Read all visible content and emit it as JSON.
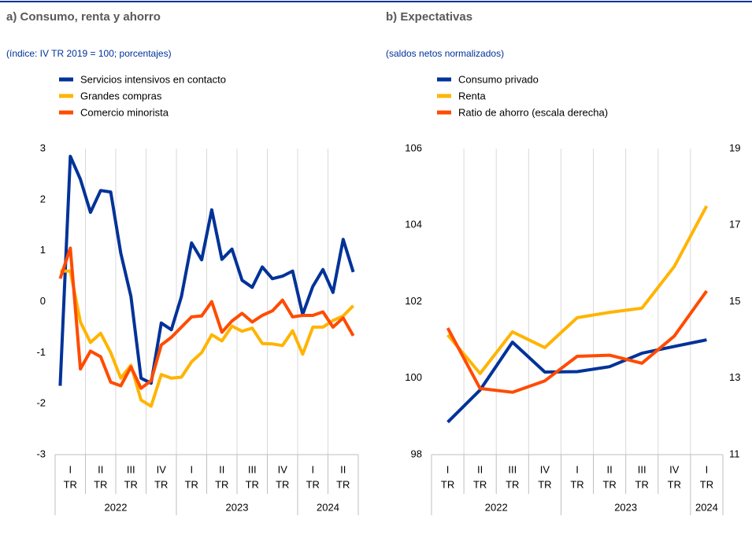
{
  "chart_data": [
    {
      "type": "line",
      "title": "a) Consumo, renta y ahorro",
      "subtitle": "(índice: IV TR 2019 = 100; porcentajes)",
      "categories": [
        null,
        "I",
        null,
        null,
        "II",
        null,
        null,
        "III",
        null,
        null,
        "IV",
        null,
        null,
        "I",
        null,
        null,
        "II",
        null,
        null,
        "III",
        null,
        null,
        "IV",
        null,
        null,
        "I",
        null,
        null,
        "II",
        null
      ],
      "quarter_suffix": "TR",
      "years": [
        "2022",
        "2023",
        "2024"
      ],
      "ylim": [
        -3,
        3
      ],
      "yticks": [
        -3,
        -2,
        -1,
        0,
        1,
        2,
        3
      ],
      "series": [
        {
          "name": "Servicios intensivos en contacto",
          "color": "#003299",
          "values": [
            -1.65,
            2.85,
            2.4,
            1.75,
            2.18,
            2.15,
            0.95,
            0.1,
            -1.5,
            -1.6,
            -0.42,
            -0.55,
            0.1,
            1.15,
            0.82,
            1.8,
            0.83,
            1.03,
            0.42,
            0.28,
            0.68,
            0.45,
            0.5,
            0.6,
            -0.25,
            0.3,
            0.63,
            0.18,
            1.22,
            0.58
          ]
        },
        {
          "name": "Grandes compras",
          "color": "#ffb400",
          "values": [
            0.6,
            0.6,
            -0.4,
            -0.8,
            -0.62,
            -1.0,
            -1.5,
            -1.25,
            -1.93,
            -2.05,
            -1.43,
            -1.5,
            -1.48,
            -1.18,
            -1.0,
            -0.65,
            -0.77,
            -0.48,
            -0.58,
            -0.52,
            -0.82,
            -0.83,
            -0.86,
            -0.57,
            -1.03,
            -0.5,
            -0.5,
            -0.37,
            -0.28,
            -0.08
          ]
        },
        {
          "name": "Comercio minorista",
          "color": "#ff4b00",
          "values": [
            0.45,
            1.05,
            -1.32,
            -0.97,
            -1.08,
            -1.58,
            -1.65,
            -1.28,
            -1.7,
            -1.55,
            -0.85,
            -0.7,
            -0.5,
            -0.3,
            -0.28,
            0.0,
            -0.6,
            -0.38,
            -0.23,
            -0.4,
            -0.27,
            -0.18,
            0.03,
            -0.3,
            -0.27,
            -0.27,
            -0.2,
            -0.5,
            -0.32,
            -0.67
          ]
        }
      ]
    },
    {
      "type": "line",
      "title": "b) Expectativas",
      "subtitle": "(saldos netos normalizados)",
      "categories": [
        "I",
        "II",
        "III",
        "IV",
        "I",
        "II",
        "III",
        "IV",
        "I"
      ],
      "quarter_suffix": "TR",
      "years": [
        "2022",
        "2023",
        "2024"
      ],
      "ylim": [
        98,
        106
      ],
      "yticks": [
        98,
        100,
        102,
        104,
        106
      ],
      "y2lim": [
        11,
        19
      ],
      "y2ticks": [
        11,
        13,
        15,
        17,
        19
      ],
      "series": [
        {
          "name": "Consumo privado",
          "color": "#003299",
          "values": [
            98.85,
            99.69,
            100.94,
            100.16,
            100.17,
            100.3,
            100.65,
            100.83,
            101.0
          ]
        },
        {
          "name": "Renta",
          "color": "#ffb400",
          "values": [
            101.13,
            100.12,
            101.21,
            100.8,
            101.58,
            101.72,
            101.83,
            102.92,
            104.5
          ]
        },
        {
          "name": "Ratio de ahorro (escala derecha)",
          "color": "#ff4b00",
          "axis": "y2",
          "values": [
            14.31,
            12.73,
            12.63,
            12.93,
            13.57,
            13.6,
            13.39,
            14.1,
            15.28
          ]
        }
      ]
    }
  ]
}
